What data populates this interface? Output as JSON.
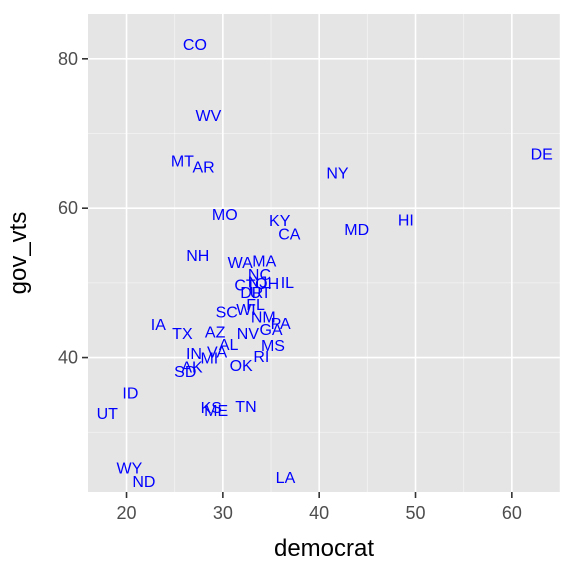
{
  "chart_data": {
    "type": "scatter",
    "title": "",
    "xlabel": "democrat",
    "ylabel": "gov_vts",
    "xlim": [
      16,
      65
    ],
    "ylim": [
      22,
      86
    ],
    "xticks": [
      20,
      30,
      40,
      50,
      60
    ],
    "yticks": [
      40,
      60,
      80
    ],
    "xminor": [
      25,
      35,
      45,
      55,
      65
    ],
    "yminor": [
      30,
      50,
      70
    ],
    "grid": true,
    "label_color": "#0000ff",
    "points": [
      {
        "label": "CO",
        "x": 27.1,
        "y": 82.0
      },
      {
        "label": "WV",
        "x": 28.5,
        "y": 72.5
      },
      {
        "label": "MT",
        "x": 25.8,
        "y": 66.4
      },
      {
        "label": "AR",
        "x": 28.0,
        "y": 65.6
      },
      {
        "label": "NY",
        "x": 41.9,
        "y": 64.8
      },
      {
        "label": "DE",
        "x": 63.1,
        "y": 67.3
      },
      {
        "label": "MO",
        "x": 30.2,
        "y": 59.2
      },
      {
        "label": "KY",
        "x": 35.9,
        "y": 58.4
      },
      {
        "label": "CA",
        "x": 36.9,
        "y": 56.6
      },
      {
        "label": "MD",
        "x": 43.9,
        "y": 57.2
      },
      {
        "label": "HI",
        "x": 49.0,
        "y": 58.5
      },
      {
        "label": "NH",
        "x": 27.4,
        "y": 53.7
      },
      {
        "label": "WA",
        "x": 31.8,
        "y": 52.8
      },
      {
        "label": "MA",
        "x": 34.3,
        "y": 53.0
      },
      {
        "label": "NC",
        "x": 33.8,
        "y": 51.2
      },
      {
        "label": "CT",
        "x": 32.3,
        "y": 49.8
      },
      {
        "label": "NJ",
        "x": 33.6,
        "y": 50.2
      },
      {
        "label": "OH",
        "x": 34.6,
        "y": 50.0
      },
      {
        "label": "IL",
        "x": 36.7,
        "y": 50.1
      },
      {
        "label": "DR",
        "x": 33.0,
        "y": 48.8
      },
      {
        "label": "UT",
        "x": 33.9,
        "y": 48.8
      },
      {
        "label": "FL",
        "x": 33.4,
        "y": 47.2
      },
      {
        "label": "SC",
        "x": 30.4,
        "y": 46.2
      },
      {
        "label": "WI",
        "x": 32.4,
        "y": 46.5
      },
      {
        "label": "NM",
        "x": 34.2,
        "y": 45.5
      },
      {
        "label": "PA",
        "x": 36.0,
        "y": 44.6
      },
      {
        "label": "GA",
        "x": 35.0,
        "y": 43.8
      },
      {
        "label": "IA",
        "x": 23.3,
        "y": 44.5
      },
      {
        "label": "TX",
        "x": 25.8,
        "y": 43.3
      },
      {
        "label": "AZ",
        "x": 29.2,
        "y": 43.5
      },
      {
        "label": "NV",
        "x": 32.6,
        "y": 43.3
      },
      {
        "label": "AL",
        "x": 30.6,
        "y": 41.8
      },
      {
        "label": "MS",
        "x": 35.2,
        "y": 41.7
      },
      {
        "label": "IN",
        "x": 27.0,
        "y": 40.6
      },
      {
        "label": "VA",
        "x": 29.4,
        "y": 40.8
      },
      {
        "label": "MI",
        "x": 28.6,
        "y": 40.0
      },
      {
        "label": "RI",
        "x": 34.0,
        "y": 40.2
      },
      {
        "label": "OK",
        "x": 31.9,
        "y": 39.0
      },
      {
        "label": "AK",
        "x": 26.8,
        "y": 38.8
      },
      {
        "label": "SD",
        "x": 26.1,
        "y": 38.2
      },
      {
        "label": "ID",
        "x": 20.4,
        "y": 35.3
      },
      {
        "label": "UT",
        "x": 18.0,
        "y": 32.6
      },
      {
        "label": "KS",
        "x": 28.8,
        "y": 33.4
      },
      {
        "label": "ME",
        "x": 29.3,
        "y": 33.0
      },
      {
        "label": "TN",
        "x": 32.4,
        "y": 33.5
      },
      {
        "label": "WY",
        "x": 20.3,
        "y": 25.3
      },
      {
        "label": "ND",
        "x": 21.8,
        "y": 23.5
      },
      {
        "label": "LA",
        "x": 36.5,
        "y": 24.0
      }
    ]
  }
}
